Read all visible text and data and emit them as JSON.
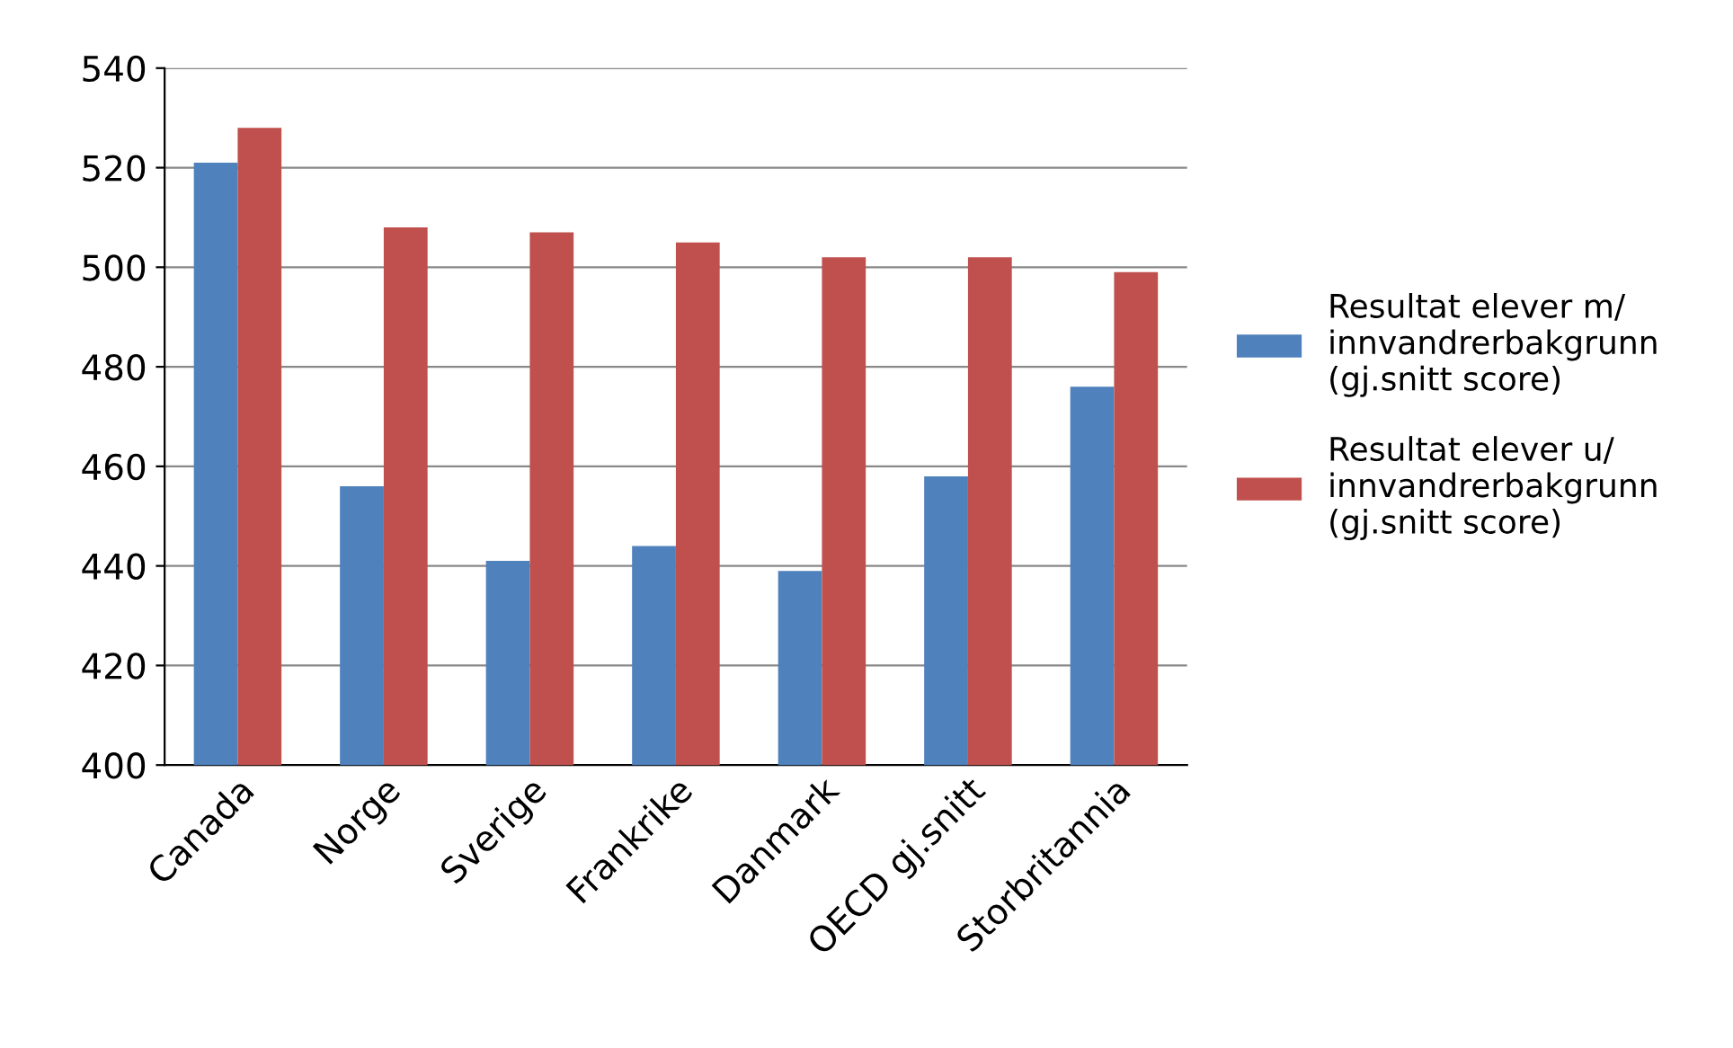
{
  "chart_data": {
    "type": "bar",
    "categories": [
      "Canada",
      "Norge",
      "Sverige",
      "Frankrike",
      "Danmark",
      "OECD gj.snitt",
      "Storbritannia"
    ],
    "series": [
      {
        "name": "Resultat elever m/\ninnvandrerbakgrunn\n(gj.snitt score)",
        "color": "#4f81bd",
        "values": [
          521,
          456,
          441,
          444,
          439,
          458,
          476
        ]
      },
      {
        "name": "Resultat elever u/\ninnvandrerbakgrunn\n(gj.snitt score)",
        "color": "#c0504d",
        "values": [
          528,
          508,
          507,
          505,
          502,
          502,
          499
        ]
      }
    ],
    "ylim": [
      400,
      540
    ],
    "yticks": [
      400,
      420,
      440,
      460,
      480,
      500,
      520,
      540
    ],
    "grid": "y",
    "legend": "right"
  }
}
